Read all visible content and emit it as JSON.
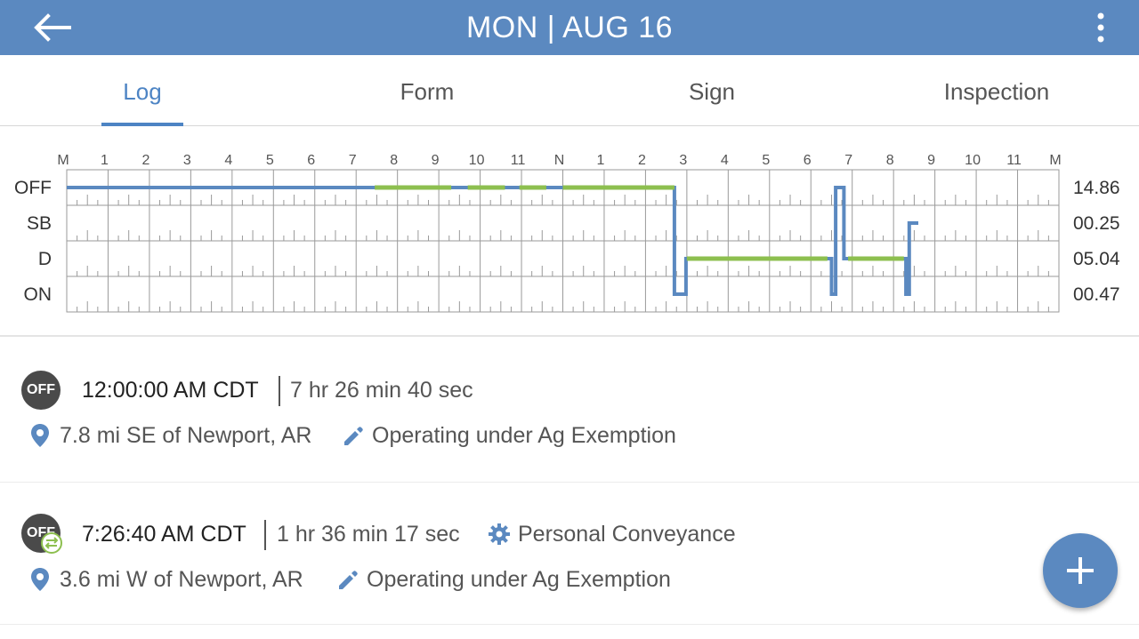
{
  "header": {
    "title": "MON | AUG 16",
    "back_icon": "arrow-left-icon",
    "menu_icon": "more-vert-icon"
  },
  "tabs": [
    {
      "label": "Log",
      "active": true
    },
    {
      "label": "Form",
      "active": false
    },
    {
      "label": "Sign",
      "active": false
    },
    {
      "label": "Inspection",
      "active": false
    }
  ],
  "log_grid": {
    "hour_labels": [
      "M",
      "1",
      "2",
      "3",
      "4",
      "5",
      "6",
      "7",
      "8",
      "9",
      "10",
      "11",
      "N",
      "1",
      "2",
      "3",
      "4",
      "5",
      "6",
      "7",
      "8",
      "9",
      "10",
      "11",
      "M"
    ],
    "statuses": [
      {
        "label": "OFF",
        "total": "14.86"
      },
      {
        "label": "SB",
        "total": "00.25"
      },
      {
        "label": "D",
        "total": "05.04"
      },
      {
        "label": "ON",
        "total": "00.47"
      }
    ],
    "colors": {
      "duty_line": "#5b89c0",
      "personal_conveyance": "#8dbf4f",
      "grid": "#9a9a9a"
    },
    "duty_path": [
      [
        0,
        0
      ],
      [
        7.35,
        0
      ],
      [
        7.35,
        0
      ],
      [
        14.7,
        0
      ],
      [
        14.7,
        3
      ],
      [
        14.98,
        3
      ],
      [
        14.98,
        2
      ],
      [
        18.5,
        2
      ],
      [
        18.5,
        3
      ],
      [
        18.6,
        3
      ],
      [
        18.6,
        0
      ],
      [
        18.8,
        0
      ],
      [
        18.8,
        2
      ],
      [
        20.3,
        2
      ],
      [
        20.3,
        3
      ],
      [
        20.38,
        3
      ],
      [
        20.38,
        1
      ],
      [
        20.6,
        1
      ]
    ],
    "pc_segments": [
      [
        7.45,
        9.3,
        0
      ],
      [
        9.7,
        10.6,
        0
      ],
      [
        10.95,
        11.6,
        0
      ],
      [
        12.0,
        14.7,
        0
      ],
      [
        15.0,
        18.4,
        2
      ],
      [
        18.9,
        20.25,
        2
      ]
    ]
  },
  "entries": [
    {
      "badge": "OFF",
      "time": "12:00:00 AM CDT",
      "duration": "7 hr 26 min 40 sec",
      "location": "7.8 mi SE of Newport, AR",
      "note": "Operating under Ag Exemption",
      "extra": ""
    },
    {
      "badge": "OFF",
      "time": "7:26:40 AM CDT",
      "duration": "1 hr 36 min 17 sec",
      "extra": "Personal Conveyance",
      "location": "3.6 mi W of Newport, AR",
      "note": "Operating under Ag Exemption"
    }
  ],
  "fab_icon": "plus-icon"
}
